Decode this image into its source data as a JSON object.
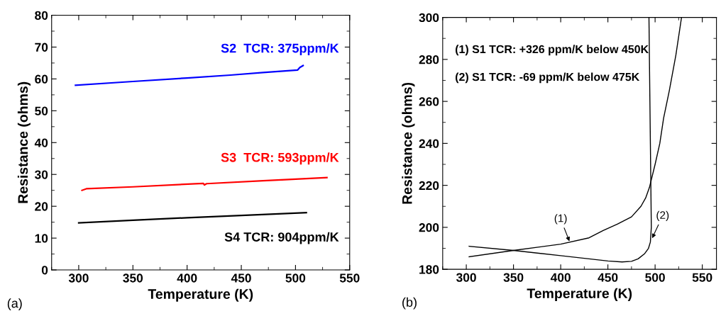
{
  "chart_data": [
    {
      "type": "line",
      "xlabel": "Temperature (K)",
      "ylabel": "Resistance (ohms)",
      "xlim": [
        275,
        550
      ],
      "xticks": [
        300,
        350,
        400,
        450,
        500,
        550
      ],
      "ylim": [
        0,
        80
      ],
      "yticks": [
        0,
        10,
        20,
        30,
        40,
        50,
        60,
        70,
        80
      ],
      "grid": false,
      "line_style": "solid",
      "marker": "none",
      "annotations": [
        "(a)",
        {
          "text": "S2  TCR: 375ppm/K",
          "x": 502,
          "y": 62.8
        },
        {
          "text": "S3  TCR: 593ppm/K",
          "x": 529,
          "y": 29
        },
        {
          "text": "S4 TCR: 904ppm/K",
          "x": 510,
          "y": 18
        }
      ],
      "series": [
        {
          "color": "#0000ff",
          "x": [
            297,
            350,
            400,
            440,
            470,
            502,
            504,
            507
          ],
          "values": [
            58,
            59.2,
            60.3,
            61.2,
            62,
            62.8,
            63.6,
            64.2
          ]
        },
        {
          "color": "#ff0000",
          "x": [
            303,
            307,
            350,
            415,
            416,
            418,
            470,
            529
          ],
          "values": [
            25,
            25.5,
            26.1,
            27.2,
            26.7,
            27.1,
            28.0,
            29
          ]
        },
        {
          "color": "#000000",
          "x": [
            300,
            350,
            400,
            450,
            510
          ],
          "values": [
            14.8,
            15.6,
            16.4,
            17.1,
            18
          ]
        }
      ]
    },
    {
      "type": "line",
      "xlabel": "Temperature (K)",
      "ylabel": "Resistance (ohms)",
      "xlim": [
        275,
        565
      ],
      "xticks": [
        300,
        350,
        400,
        450,
        500,
        550
      ],
      "ylim": [
        180,
        300
      ],
      "yticks": [
        180,
        200,
        220,
        240,
        260,
        280,
        300
      ],
      "grid": false,
      "legend": false,
      "line_style": "solid",
      "marker": "none",
      "annotations": [
        "(b)",
        "(1) S1 TCR: +326 ppm/K below 450K",
        "(2) S1 TCR: -69 ppm/K below 475K",
        {
          "text": "(1)",
          "x": 410,
          "y": 192.5
        },
        {
          "text": "(2)",
          "x": 496,
          "y": 194
        }
      ],
      "series": [
        {
          "color": "#000000",
          "x": [
            303,
            350,
            400,
            430,
            445,
            460,
            475,
            485,
            490,
            494,
            500,
            505,
            509,
            515,
            522,
            528
          ],
          "values": [
            186,
            189,
            192,
            195,
            198.5,
            201.5,
            205,
            210,
            214,
            219,
            230,
            240,
            252,
            265,
            282,
            300
          ]
        },
        {
          "color": "#000000",
          "x": [
            303,
            350,
            400,
            450,
            465,
            475,
            482,
            489,
            493,
            495,
            496,
            495.5,
            495,
            494.5,
            494,
            493.5
          ],
          "values": [
            191,
            189,
            186.5,
            184,
            183.5,
            183.8,
            185,
            187.5,
            190,
            193,
            200,
            220,
            240,
            260,
            280,
            300
          ]
        }
      ]
    }
  ]
}
